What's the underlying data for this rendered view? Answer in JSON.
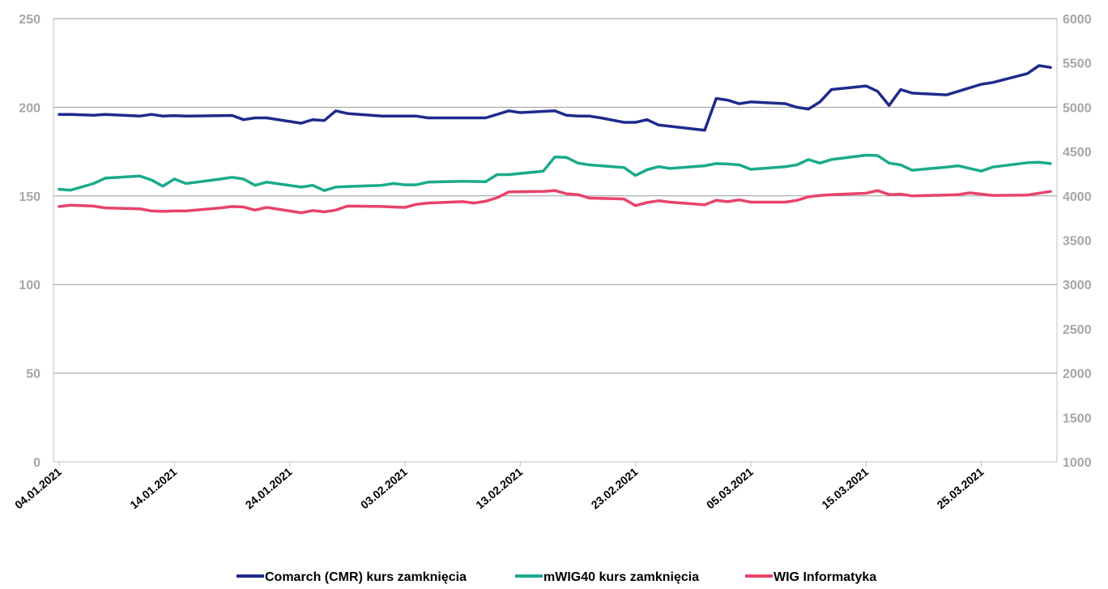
{
  "chart_data": {
    "type": "line",
    "x_tick_labels": [
      "04.01.2021",
      "14.01.2021",
      "24.01.2021",
      "03.02.2021",
      "13.02.2021",
      "23.02.2021",
      "05.03.2021",
      "15.03.2021",
      "25.03.2021"
    ],
    "x_start": "04.01.2021",
    "x_end": "31.03.2021",
    "y_left": {
      "min": 0,
      "max": 250,
      "ticks": [
        "0",
        "50",
        "100",
        "150",
        "200",
        "250"
      ]
    },
    "y_right": {
      "min": 1000,
      "max": 6000,
      "ticks": [
        "1000",
        "1500",
        "2000",
        "2500",
        "3000",
        "3500",
        "4000",
        "4500",
        "5000",
        "5500",
        "6000"
      ]
    },
    "grid": true,
    "legend_position": "bottom",
    "series": [
      {
        "name": "Comarch (CMR) kurs zamknięcia",
        "axis": "left",
        "color": "#1f2a8c",
        "points": [
          [
            "04.01.2021",
            196
          ],
          [
            "05.01.2021",
            196
          ],
          [
            "07.01.2021",
            195.5
          ],
          [
            "08.01.2021",
            196
          ],
          [
            "11.01.2021",
            195
          ],
          [
            "12.01.2021",
            196
          ],
          [
            "13.01.2021",
            195
          ],
          [
            "14.01.2021",
            195.3
          ],
          [
            "15.01.2021",
            195
          ],
          [
            "18.01.2021",
            195.3
          ],
          [
            "19.01.2021",
            195.4
          ],
          [
            "20.01.2021",
            193
          ],
          [
            "21.01.2021",
            194
          ],
          [
            "22.01.2021",
            194
          ],
          [
            "25.01.2021",
            191
          ],
          [
            "26.01.2021",
            193
          ],
          [
            "27.01.2021",
            192.5
          ],
          [
            "28.01.2021",
            198
          ],
          [
            "29.01.2021",
            196.5
          ],
          [
            "01.02.2021",
            195
          ],
          [
            "03.02.2021",
            195
          ],
          [
            "04.02.2021",
            195
          ],
          [
            "05.02.2021",
            194
          ],
          [
            "08.02.2021",
            194
          ],
          [
            "10.02.2021",
            194
          ],
          [
            "12.02.2021",
            198
          ],
          [
            "13.02.2021",
            197
          ],
          [
            "16.02.2021",
            198
          ],
          [
            "17.02.2021",
            195.5
          ],
          [
            "18.02.2021",
            195
          ],
          [
            "19.02.2021",
            195
          ],
          [
            "20.02.2021",
            194
          ],
          [
            "22.02.2021",
            191.5
          ],
          [
            "23.02.2021",
            191.5
          ],
          [
            "24.02.2021",
            193
          ],
          [
            "25.02.2021",
            190
          ],
          [
            "01.03.2021",
            187
          ],
          [
            "02.03.2021",
            205
          ],
          [
            "03.03.2021",
            204
          ],
          [
            "04.03.2021",
            202
          ],
          [
            "05.03.2021",
            203
          ],
          [
            "08.03.2021",
            202
          ],
          [
            "09.03.2021",
            200
          ],
          [
            "10.03.2021",
            199
          ],
          [
            "11.03.2021",
            203
          ],
          [
            "12.03.2021",
            210
          ],
          [
            "15.03.2021",
            212
          ],
          [
            "16.03.2021",
            209
          ],
          [
            "17.03.2021",
            201
          ],
          [
            "18.03.2021",
            210
          ],
          [
            "19.03.2021",
            208
          ],
          [
            "22.03.2021",
            207
          ],
          [
            "24.03.2021",
            211
          ],
          [
            "25.03.2021",
            213
          ],
          [
            "26.03.2021",
            214
          ],
          [
            "29.03.2021",
            219
          ],
          [
            "30.03.2021",
            223.5
          ],
          [
            "31.03.2021",
            222.5
          ]
        ]
      },
      {
        "name": "mWIG40 kurs zamknięcia",
        "axis": "right",
        "color": "#1aaa8c",
        "points": [
          [
            "04.01.2021",
            4075
          ],
          [
            "05.01.2021",
            4065
          ],
          [
            "07.01.2021",
            4140
          ],
          [
            "08.01.2021",
            4200
          ],
          [
            "11.01.2021",
            4225
          ],
          [
            "12.01.2021",
            4180
          ],
          [
            "13.01.2021",
            4110
          ],
          [
            "14.01.2021",
            4190
          ],
          [
            "15.01.2021",
            4140
          ],
          [
            "18.01.2021",
            4190
          ],
          [
            "19.01.2021",
            4210
          ],
          [
            "20.01.2021",
            4190
          ],
          [
            "21.01.2021",
            4120
          ],
          [
            "22.01.2021",
            4155
          ],
          [
            "25.01.2021",
            4100
          ],
          [
            "26.01.2021",
            4120
          ],
          [
            "27.01.2021",
            4060
          ],
          [
            "28.01.2021",
            4100
          ],
          [
            "29.01.2021",
            4105
          ],
          [
            "01.02.2021",
            4120
          ],
          [
            "02.02.2021",
            4140
          ],
          [
            "03.02.2021",
            4125
          ],
          [
            "04.02.2021",
            4125
          ],
          [
            "05.02.2021",
            4155
          ],
          [
            "08.02.2021",
            4165
          ],
          [
            "10.02.2021",
            4160
          ],
          [
            "11.02.2021",
            4240
          ],
          [
            "12.02.2021",
            4240
          ],
          [
            "15.02.2021",
            4280
          ],
          [
            "16.02.2021",
            4440
          ],
          [
            "17.02.2021",
            4435
          ],
          [
            "18.02.2021",
            4370
          ],
          [
            "19.02.2021",
            4350
          ],
          [
            "22.02.2021",
            4320
          ],
          [
            "23.02.2021",
            4230
          ],
          [
            "24.02.2021",
            4295
          ],
          [
            "25.02.2021",
            4330
          ],
          [
            "26.02.2021",
            4310
          ],
          [
            "01.03.2021",
            4340
          ],
          [
            "02.03.2021",
            4365
          ],
          [
            "03.03.2021",
            4360
          ],
          [
            "04.03.2021",
            4350
          ],
          [
            "05.03.2021",
            4300
          ],
          [
            "08.03.2021",
            4330
          ],
          [
            "09.03.2021",
            4350
          ],
          [
            "10.03.2021",
            4410
          ],
          [
            "11.03.2021",
            4370
          ],
          [
            "12.03.2021",
            4410
          ],
          [
            "15.03.2021",
            4460
          ],
          [
            "16.03.2021",
            4455
          ],
          [
            "17.03.2021",
            4370
          ],
          [
            "18.03.2021",
            4350
          ],
          [
            "19.03.2021",
            4290
          ],
          [
            "22.03.2021",
            4325
          ],
          [
            "23.03.2021",
            4340
          ],
          [
            "24.03.2021",
            4310
          ],
          [
            "25.03.2021",
            4280
          ],
          [
            "26.03.2021",
            4325
          ],
          [
            "29.03.2021",
            4375
          ],
          [
            "30.03.2021",
            4380
          ],
          [
            "31.03.2021",
            4365
          ]
        ]
      },
      {
        "name": "WIG Informatyka",
        "axis": "right",
        "color": "#e8436a",
        "points": [
          [
            "04.01.2021",
            3880
          ],
          [
            "05.01.2021",
            3895
          ],
          [
            "07.01.2021",
            3885
          ],
          [
            "08.01.2021",
            3865
          ],
          [
            "11.01.2021",
            3855
          ],
          [
            "12.01.2021",
            3830
          ],
          [
            "13.01.2021",
            3825
          ],
          [
            "14.01.2021",
            3830
          ],
          [
            "15.01.2021",
            3830
          ],
          [
            "18.01.2021",
            3865
          ],
          [
            "19.01.2021",
            3880
          ],
          [
            "20.01.2021",
            3875
          ],
          [
            "21.01.2021",
            3840
          ],
          [
            "22.01.2021",
            3870
          ],
          [
            "25.01.2021",
            3810
          ],
          [
            "26.01.2021",
            3835
          ],
          [
            "27.01.2021",
            3820
          ],
          [
            "28.01.2021",
            3840
          ],
          [
            "29.01.2021",
            3885
          ],
          [
            "01.02.2021",
            3880
          ],
          [
            "02.02.2021",
            3875
          ],
          [
            "03.02.2021",
            3870
          ],
          [
            "04.02.2021",
            3905
          ],
          [
            "05.02.2021",
            3920
          ],
          [
            "08.02.2021",
            3935
          ],
          [
            "09.02.2021",
            3920
          ],
          [
            "10.02.2021",
            3940
          ],
          [
            "11.02.2021",
            3980
          ],
          [
            "12.02.2021",
            4045
          ],
          [
            "15.02.2021",
            4050
          ],
          [
            "16.02.2021",
            4060
          ],
          [
            "17.02.2021",
            4025
          ],
          [
            "18.02.2021",
            4015
          ],
          [
            "19.02.2021",
            3975
          ],
          [
            "22.02.2021",
            3965
          ],
          [
            "23.02.2021",
            3890
          ],
          [
            "24.02.2021",
            3925
          ],
          [
            "25.02.2021",
            3945
          ],
          [
            "26.02.2021",
            3930
          ],
          [
            "01.03.2021",
            3900
          ],
          [
            "02.03.2021",
            3950
          ],
          [
            "03.03.2021",
            3935
          ],
          [
            "04.03.2021",
            3955
          ],
          [
            "05.03.2021",
            3930
          ],
          [
            "08.03.2021",
            3930
          ],
          [
            "09.03.2021",
            3950
          ],
          [
            "10.03.2021",
            3990
          ],
          [
            "11.03.2021",
            4005
          ],
          [
            "12.03.2021",
            4015
          ],
          [
            "15.03.2021",
            4030
          ],
          [
            "16.03.2021",
            4060
          ],
          [
            "17.03.2021",
            4015
          ],
          [
            "18.03.2021",
            4020
          ],
          [
            "19.03.2021",
            4000
          ],
          [
            "22.03.2021",
            4010
          ],
          [
            "23.03.2021",
            4015
          ],
          [
            "24.03.2021",
            4035
          ],
          [
            "25.03.2021",
            4020
          ],
          [
            "26.03.2021",
            4005
          ],
          [
            "29.03.2021",
            4010
          ],
          [
            "30.03.2021",
            4030
          ],
          [
            "31.03.2021",
            4050
          ]
        ]
      }
    ]
  }
}
